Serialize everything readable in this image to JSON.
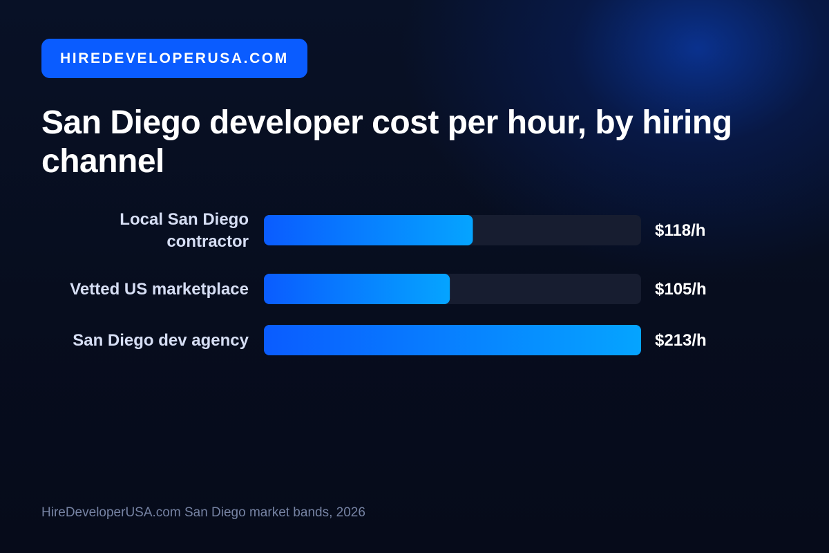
{
  "brand": {
    "label": "HIREDEVELOPERUSA.COM"
  },
  "chart_data": {
    "type": "bar",
    "orientation": "horizontal",
    "title": "San Diego developer cost per hour, by hiring channel",
    "categories": [
      [
        "Local San Diego",
        "contractor"
      ],
      [
        "Vetted US marketplace"
      ],
      [
        "San Diego dev agency"
      ]
    ],
    "values": [
      118,
      105,
      213
    ],
    "value_labels": [
      "$118/h",
      "$105/h",
      "$213/h"
    ],
    "unit": "$/h",
    "xlim": [
      0,
      213
    ],
    "grid": false,
    "legend": "none"
  },
  "source": "HireDeveloperUSA.com San Diego market bands, 2026",
  "colors": {
    "background": "#070d1e",
    "glow": "#0a3aa0",
    "brand_pill": "#0a5cff",
    "bar_start": "#0a5cff",
    "bar_end": "#05a4ff",
    "track": "#171d30",
    "category_label": "#d6def4",
    "value_label": "#ffffff",
    "source_text": "#7683a3"
  }
}
